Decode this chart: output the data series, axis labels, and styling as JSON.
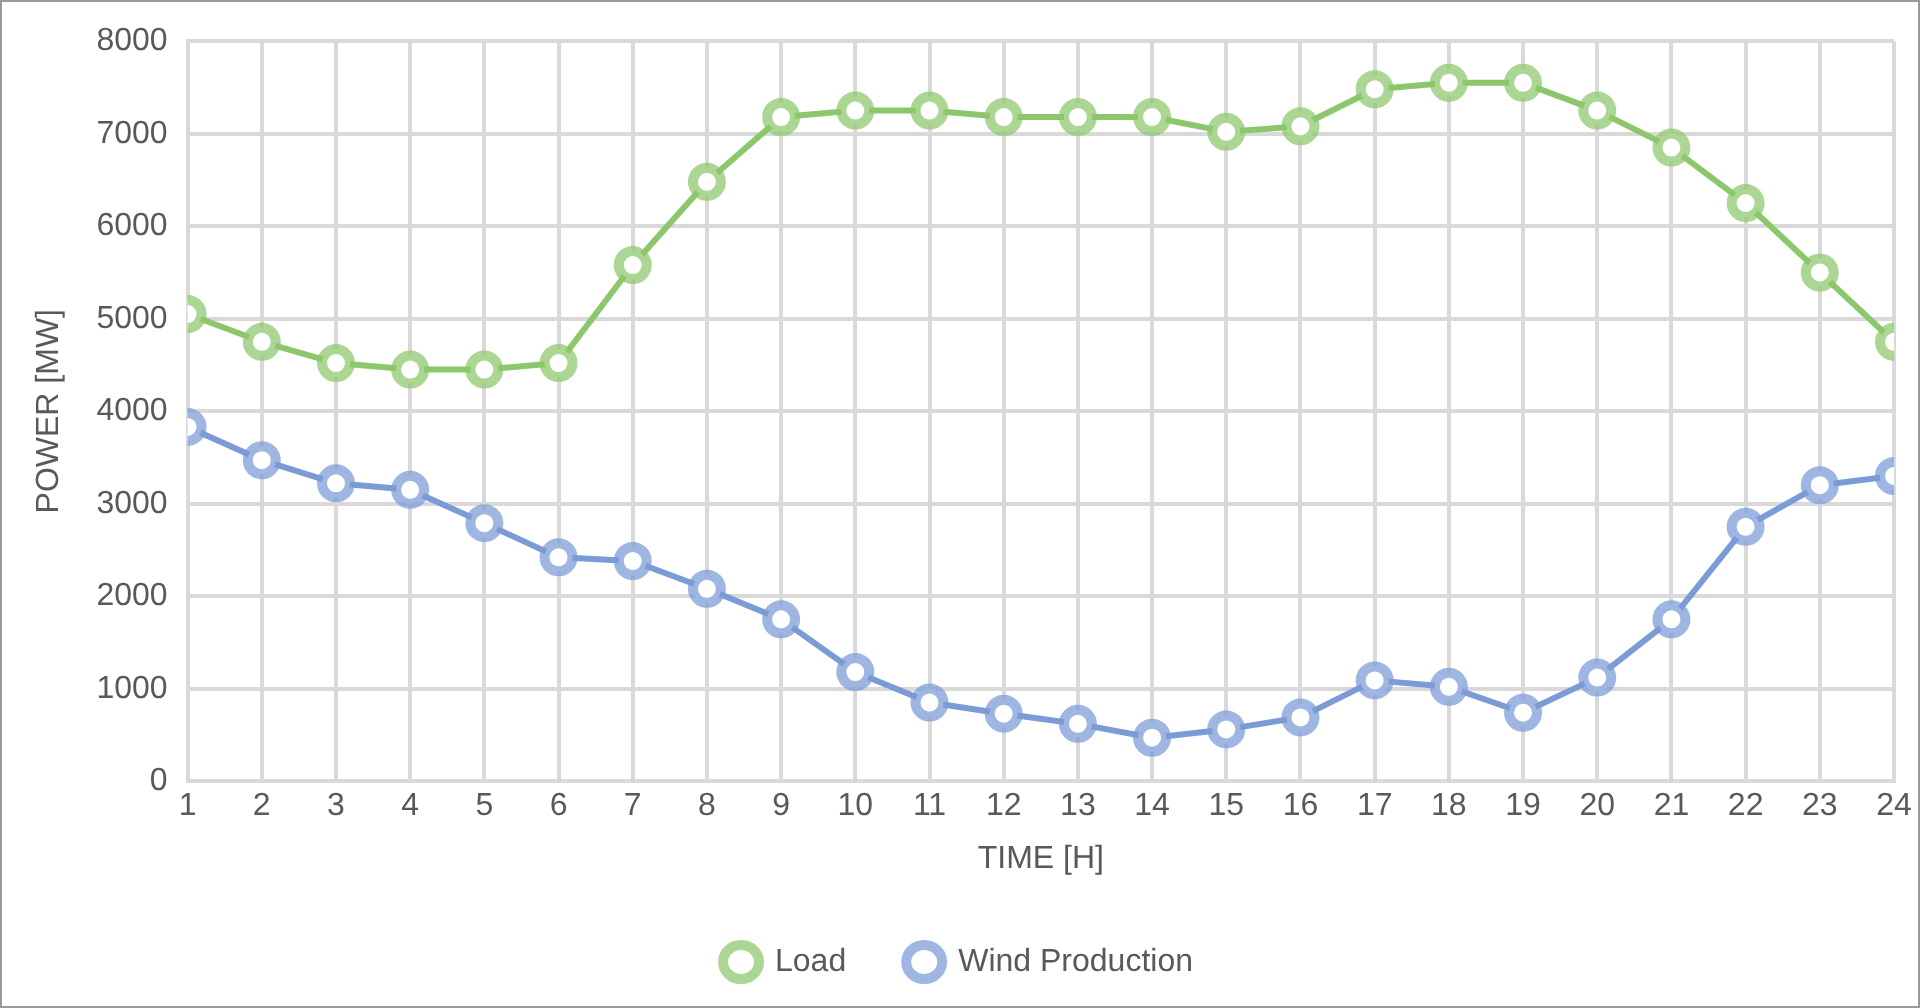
{
  "chart_data": {
    "type": "line",
    "xlabel": "TIME [H]",
    "ylabel": "POWER [MW]",
    "x": [
      1,
      2,
      3,
      4,
      5,
      6,
      7,
      8,
      9,
      10,
      11,
      12,
      13,
      14,
      15,
      16,
      17,
      18,
      19,
      20,
      21,
      22,
      23,
      24
    ],
    "xlim": [
      1,
      24
    ],
    "xticks": [
      1,
      2,
      3,
      4,
      5,
      6,
      7,
      8,
      9,
      10,
      11,
      12,
      13,
      14,
      15,
      16,
      17,
      18,
      19,
      20,
      21,
      22,
      23,
      24
    ],
    "ylim": [
      0,
      8000
    ],
    "yticks": [
      0,
      1000,
      2000,
      3000,
      4000,
      5000,
      6000,
      7000,
      8000
    ],
    "grid": true,
    "legend": "bottom",
    "marker": "circle",
    "line_style": "solid",
    "series": [
      {
        "name": "Load",
        "color": "#8cc76c",
        "values": [
          5050,
          4750,
          4520,
          4450,
          4450,
          4520,
          5580,
          6480,
          7180,
          7250,
          7250,
          7180,
          7180,
          7180,
          7020,
          7080,
          7480,
          7550,
          7550,
          7250,
          6850,
          6250,
          5500,
          4750
        ]
      },
      {
        "name": "Wind Production",
        "color": "#7b9bd6",
        "values": [
          3830,
          3470,
          3220,
          3150,
          2790,
          2420,
          2380,
          2080,
          1750,
          1180,
          850,
          730,
          620,
          470,
          560,
          690,
          1090,
          1020,
          740,
          1120,
          1750,
          2750,
          3200,
          3300
        ]
      }
    ]
  }
}
